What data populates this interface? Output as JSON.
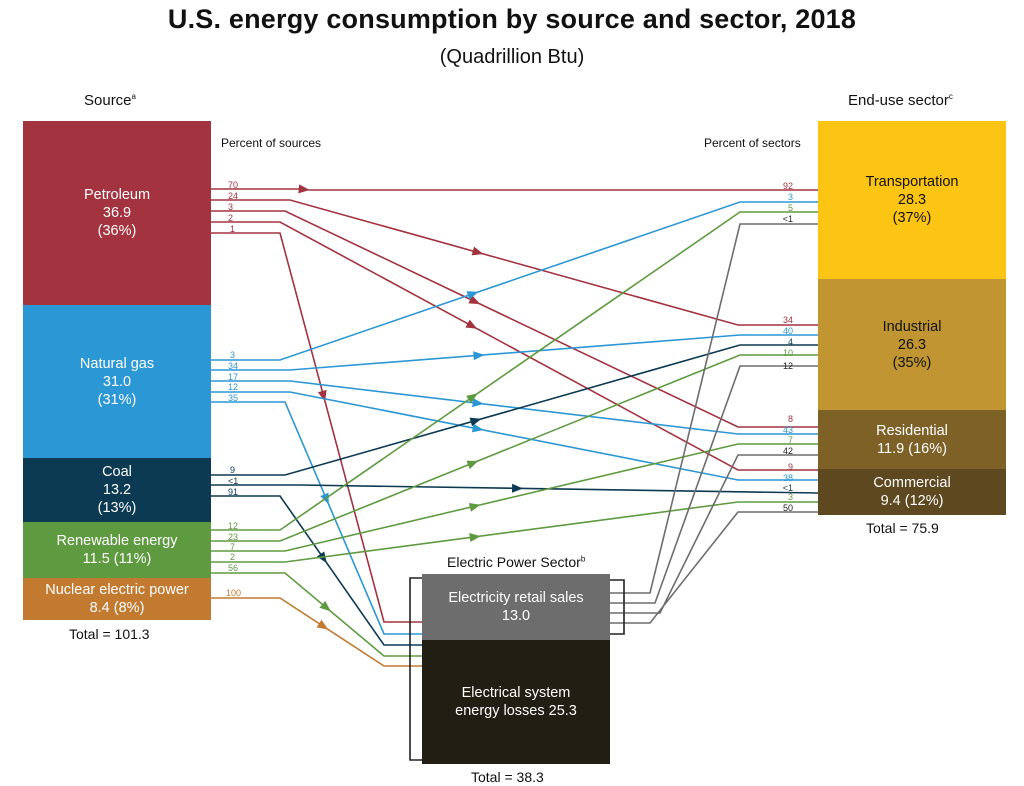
{
  "title": "U.S. energy consumption by source and sector, 2018",
  "subtitle": "(Quadrillion Btu)",
  "source_header": "Source",
  "source_header_sup": "a",
  "sector_header": "End-use sector",
  "sector_header_sup": "c",
  "eps_header": "Electric Power Sector",
  "eps_header_sup": "b",
  "percent_of_sources": "Percent of sources",
  "percent_of_sectors": "Percent of sectors",
  "sources": [
    {
      "name": "Petroleum",
      "value": "36.9",
      "pct": "(36%)",
      "color": "#A3333F"
    },
    {
      "name": "Natural gas",
      "value": "31.0",
      "pct": "(31%)",
      "color": "#2C97D5"
    },
    {
      "name": "Coal",
      "value": "13.2",
      "pct": "(13%)",
      "color": "#0B3A52"
    },
    {
      "name": "Renewable energy",
      "value": "11.5 (11%)",
      "pct": "",
      "color": "#5E9A3F"
    },
    {
      "name": "Nuclear electric power",
      "value": "8.4 (8%)",
      "pct": "",
      "color": "#C17A2F"
    }
  ],
  "source_total": "Total = 101.3",
  "sectors": [
    {
      "name": "Transportation",
      "value": "28.3",
      "pct": "(37%)",
      "color": "#FDC513"
    },
    {
      "name": "Industrial",
      "value": "26.3",
      "pct": "(35%)",
      "color": "#C09532"
    },
    {
      "name": "Residential",
      "value": "11.9 (16%)",
      "pct": "",
      "color": "#7E6127"
    },
    {
      "name": "Commercial",
      "value": "9.4 (12%)",
      "pct": "",
      "color": "#5E4820"
    }
  ],
  "sector_total": "Total = 75.9",
  "electric": {
    "retail_label": "Electricity retail sales",
    "retail_value": "13.0",
    "retail_color": "#6D6D6E",
    "losses_label": "Electrical system",
    "losses_label2": "energy losses  25.3",
    "losses_color": "#231E14",
    "total": "Total = 38.3"
  },
  "source_percents": {
    "petroleum": [
      "70",
      "24",
      "3",
      "2",
      "1"
    ],
    "natural_gas": [
      "3",
      "34",
      "17",
      "12",
      "35"
    ],
    "coal": [
      "9",
      "<1",
      "91"
    ],
    "renewable": [
      "12",
      "23",
      "7",
      "2",
      "56"
    ],
    "nuclear": [
      "100"
    ]
  },
  "sector_percents": {
    "transportation": [
      "92",
      "3",
      "5",
      "<1"
    ],
    "industrial": [
      "34",
      "40",
      "4",
      "10",
      "12"
    ],
    "residential": [
      "8",
      "43",
      "7",
      "42"
    ],
    "commercial": [
      "9",
      "38",
      "<1",
      "3",
      "50"
    ]
  },
  "colors": {
    "electric_line": "#6D6D6E",
    "bracket": "#222222"
  }
}
